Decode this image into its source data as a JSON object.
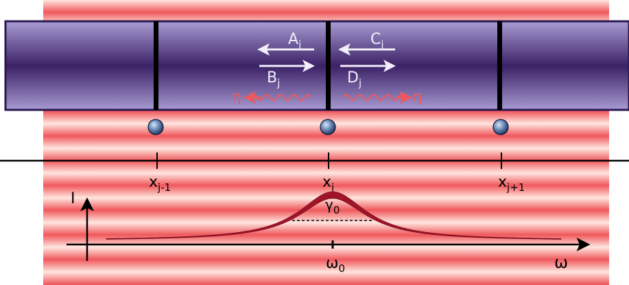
{
  "colors": {
    "stripe_light": "#ffe6df",
    "stripe_dark": "#f0585c",
    "waveguide_dark": "#3b2166",
    "waveguide_light": "#9a89c9",
    "waveguide_border": "#2a1750",
    "barrier": "#000000",
    "arrow_white": "#f2eefb",
    "emission": "#f0585c",
    "lorentzian": "#a01428",
    "axis": "#000000"
  },
  "amplitudes": {
    "a": {
      "letter": "A",
      "sub": "j"
    },
    "b": {
      "letter": "B",
      "sub": "j"
    },
    "c": {
      "letter": "C",
      "sub": "j"
    },
    "d": {
      "letter": "D",
      "sub": "j"
    }
  },
  "emission": {
    "left_label": "η",
    "right_label": "η"
  },
  "positions": [
    {
      "main": "x",
      "sub": "j-1"
    },
    {
      "main": "x",
      "sub": "j"
    },
    {
      "main": "x",
      "sub": "j+1"
    }
  ],
  "spectrum": {
    "y_label": "I",
    "x_label": "ω",
    "center": {
      "main": "ω",
      "sub": "0"
    },
    "width": {
      "main": "γ",
      "sub": "0"
    }
  }
}
